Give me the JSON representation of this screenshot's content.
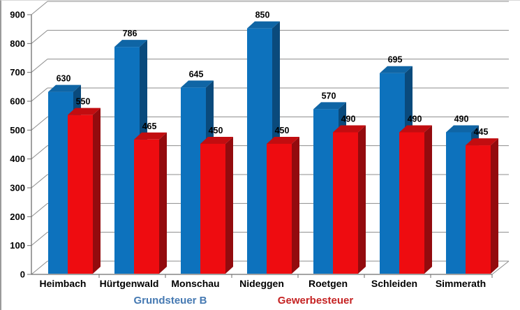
{
  "chart_data": {
    "type": "bar",
    "style": "3d-clustered-column",
    "title": "",
    "xlabel": "",
    "ylabel": "",
    "categories": [
      "Heimbach",
      "Hürtgenwald",
      "Monschau",
      "Nideggen",
      "Roetgen",
      "Schleiden",
      "Simmerath"
    ],
    "series": [
      {
        "name": "Grundsteuer B",
        "values": [
          630,
          786,
          645,
          850,
          570,
          695,
          490
        ],
        "front_color": "#0d72bd",
        "side_color": "#0a4a7c",
        "top_color": "#0f65a5",
        "legend_text_color": "#4579b2"
      },
      {
        "name": "Gewerbesteuer",
        "values": [
          550,
          465,
          450,
          450,
          490,
          490,
          445
        ],
        "front_color": "#ee0c10",
        "side_color": "#930b0e",
        "top_color": "#c20d10",
        "legend_text_color": "#c52222"
      }
    ],
    "ylim": [
      0,
      900
    ],
    "ytick_step": 100,
    "ytick_labels": [
      "0",
      "100",
      "200",
      "300",
      "400",
      "500",
      "600",
      "700",
      "800",
      "900"
    ],
    "grid": true,
    "value_labels": true,
    "legend_position": "bottom",
    "colors": {
      "grid_color": "#8c8c8c",
      "axis_color": "#6e6e6e",
      "text_color": "#000000",
      "background": "#ffffff"
    }
  }
}
